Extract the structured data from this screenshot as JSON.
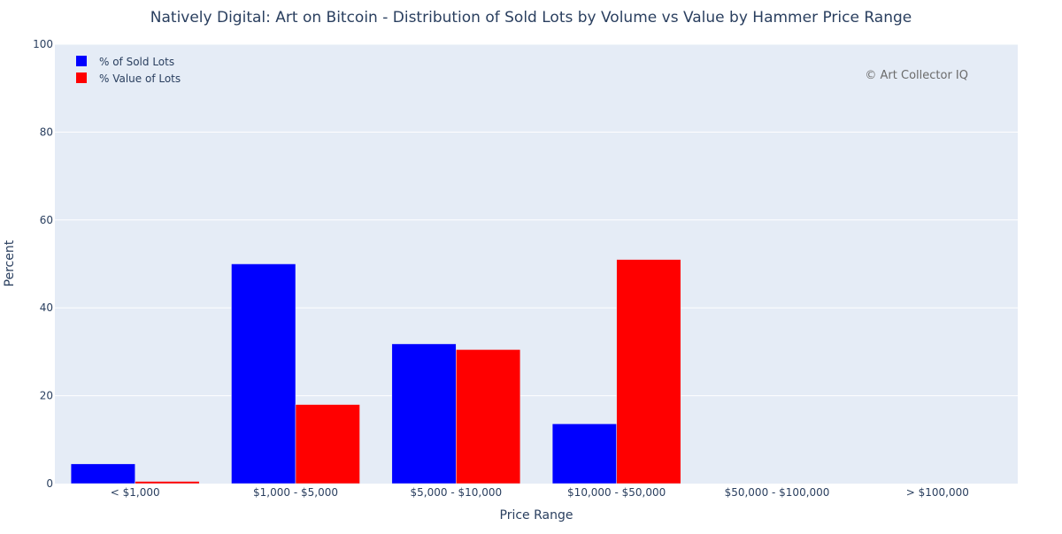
{
  "chart_data": {
    "type": "bar",
    "title": "Natively Digital: Art on Bitcoin - Distribution of Sold Lots by Volume vs Value by Hammer Price Range",
    "xlabel": "Price Range",
    "ylabel": "Percent",
    "categories": [
      "< $1,000",
      "$1,000 - $5,000",
      "$5,000 - $10,000",
      "$10,000 - $50,000",
      "$50,000 - $100,000",
      "> $100,000"
    ],
    "series": [
      {
        "name": "% of Sold Lots",
        "color": "#0000ff",
        "values": [
          4.5,
          50.0,
          31.8,
          13.6,
          0,
          0
        ]
      },
      {
        "name": "% Value of Lots",
        "color": "#ff0000",
        "values": [
          0.5,
          18.0,
          30.5,
          51.0,
          0,
          0
        ]
      }
    ],
    "ylim": [
      0,
      100
    ],
    "yticks": [
      0,
      20,
      40,
      60,
      80,
      100
    ],
    "grid": true,
    "legend_position": "top-left",
    "plot_background": "#e5ecf6",
    "annotation": "© Art Collector IQ"
  }
}
